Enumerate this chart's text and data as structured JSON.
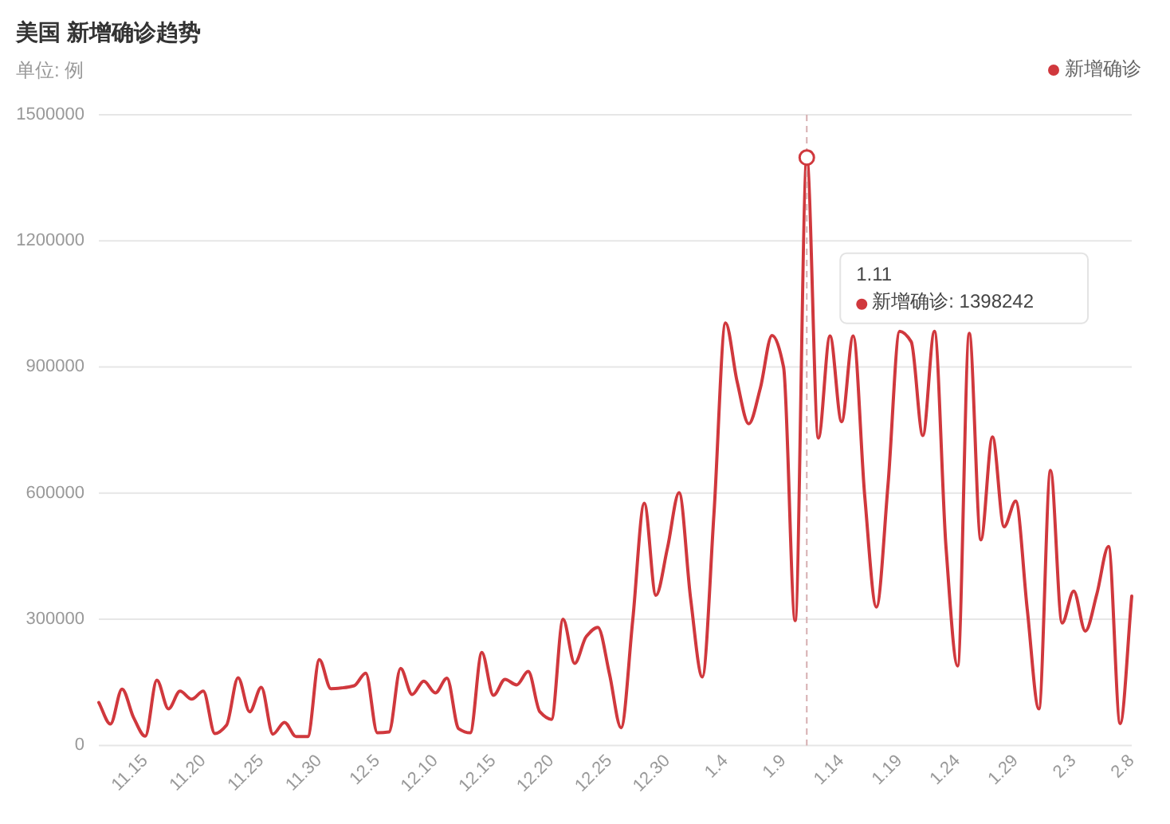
{
  "chart_data": {
    "type": "line",
    "title": "美国 新增确诊趋势",
    "subtitle": "单位: 例",
    "categories": [
      null,
      null,
      null,
      null,
      "11.15",
      null,
      null,
      null,
      null,
      "11.20",
      null,
      null,
      null,
      null,
      "11.25",
      null,
      null,
      null,
      null,
      "11.30",
      null,
      null,
      null,
      null,
      "12.5",
      null,
      null,
      null,
      null,
      "12.10",
      null,
      null,
      null,
      null,
      "12.15",
      null,
      null,
      null,
      null,
      "12.20",
      null,
      null,
      null,
      null,
      "12.25",
      null,
      null,
      null,
      null,
      "12.30",
      null,
      null,
      null,
      null,
      "1.4",
      null,
      null,
      null,
      null,
      "1.9",
      null,
      null,
      null,
      null,
      "1.14",
      null,
      null,
      null,
      null,
      "1.19",
      null,
      null,
      null,
      null,
      "1.24",
      null,
      null,
      null,
      null,
      "1.29",
      null,
      null,
      null,
      null,
      "2.3",
      null,
      null,
      null,
      null,
      "2.8"
    ],
    "series": [
      {
        "name": "新增确诊",
        "color": "#d0383d",
        "values": [
          102000,
          51000,
          134000,
          66000,
          22000,
          155000,
          87000,
          129000,
          110000,
          129000,
          28000,
          48000,
          161000,
          80000,
          138000,
          27000,
          55000,
          21000,
          21000,
          204000,
          135000,
          137000,
          142000,
          172000,
          30000,
          32000,
          183000,
          121000,
          153000,
          125000,
          160000,
          40000,
          30000,
          221000,
          119000,
          157000,
          144000,
          176000,
          80000,
          62000,
          300000,
          195000,
          259000,
          281000,
          170000,
          42000,
          297000,
          576000,
          357000,
          470000,
          601000,
          347000,
          163000,
          550000,
          1005000,
          865000,
          765000,
          850000,
          975000,
          900000,
          297000,
          1398242,
          731000,
          974000,
          770000,
          974000,
          591000,
          329000,
          620000,
          985000,
          960000,
          737000,
          985000,
          470000,
          189000,
          980000,
          489000,
          734000,
          520000,
          581000,
          323000,
          87000,
          654000,
          291000,
          367000,
          272000,
          361000,
          473000,
          52000,
          355000
        ]
      }
    ],
    "ylim": [
      0,
      1500000
    ],
    "yticks": [
      0,
      300000,
      600000,
      900000,
      1200000,
      1500000
    ],
    "grid": "y",
    "legend": "top right",
    "marker": "none",
    "line_style": "solid",
    "annotations": [
      "1.11",
      "新增确诊: 1398242"
    ]
  }
}
